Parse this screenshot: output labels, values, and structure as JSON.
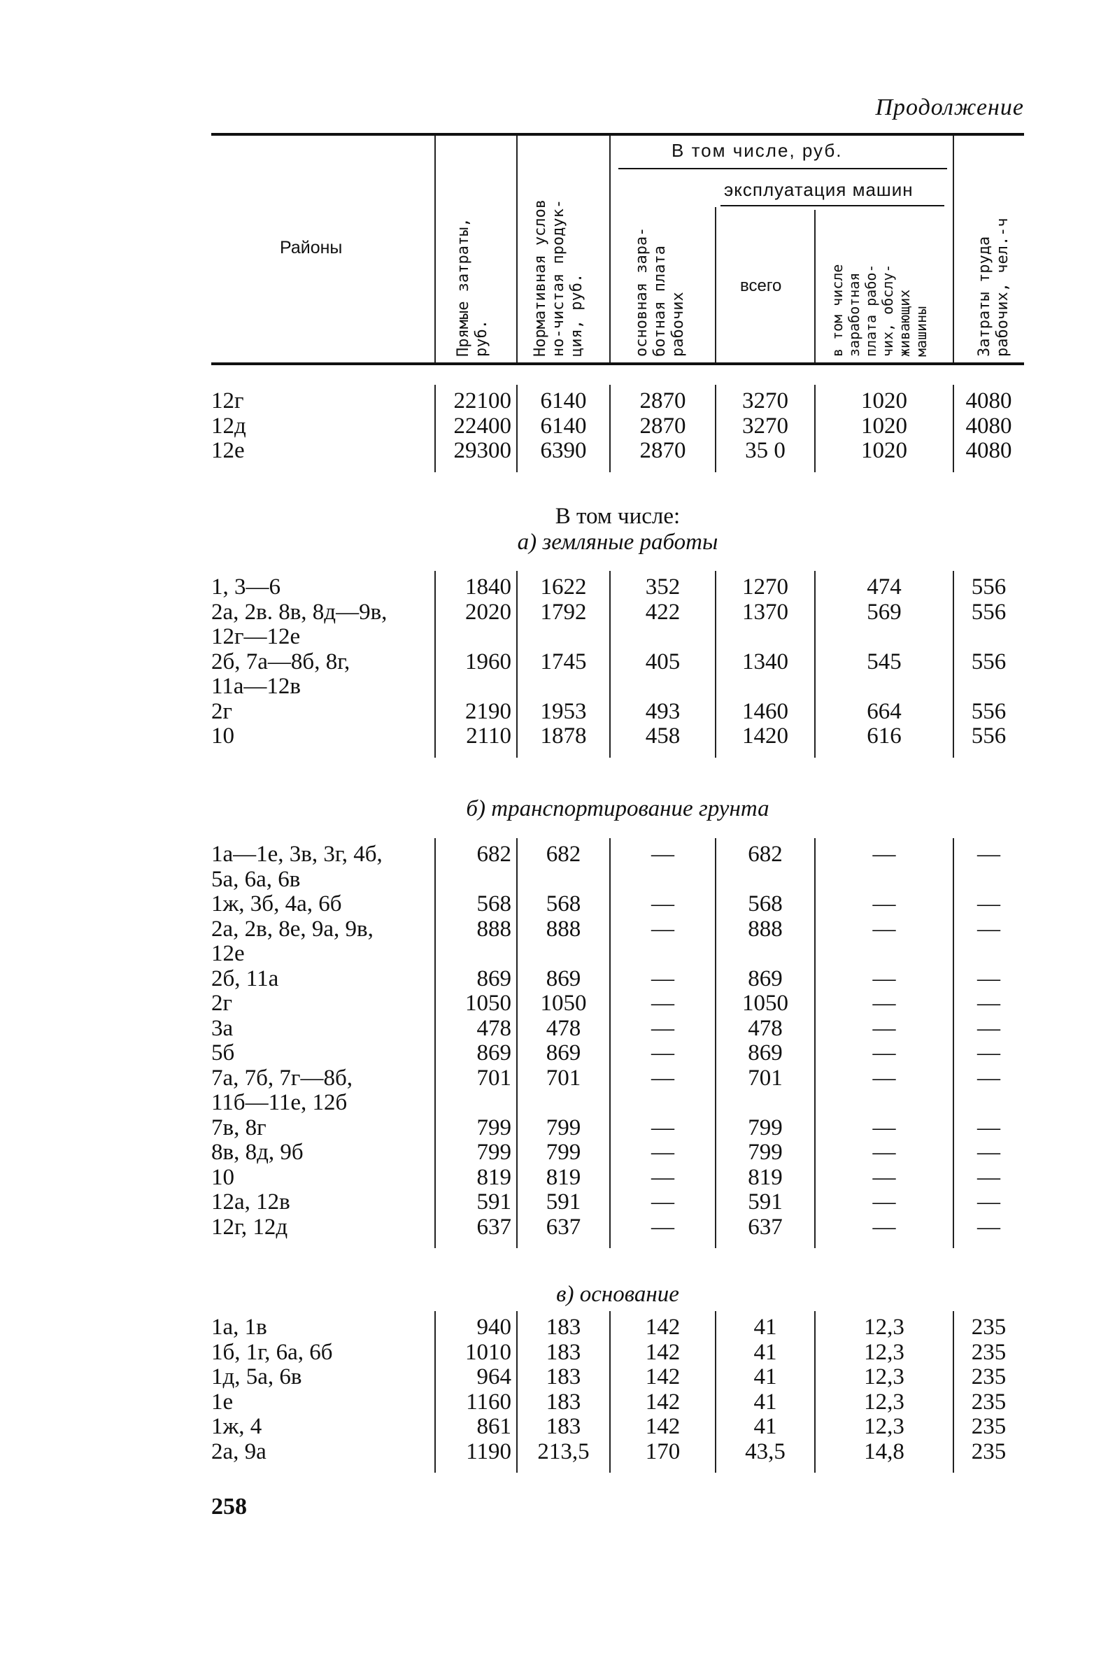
{
  "page": {
    "continuation": "Продолжение",
    "page_number": "258"
  },
  "header": {
    "regions": "Районы",
    "direct_costs": "Прямые затраты,\nруб.",
    "normative_net": "Нормативная услов\nно-чистая продук-\nция, руб.",
    "incl_group": "В том числе, руб.",
    "base_wage": "основная зара-\nботная плата\nрабочих",
    "machine_group": "эксплуатация машин",
    "machine_total": "всего",
    "machine_wage": "в том числе\nзаработная\nплата рабо-\nчих, обслу-\nживающих\nмашины",
    "labor": "Затраты труда\nрабочих, чел.-ч"
  },
  "sections": [
    {
      "title": "",
      "subtitle": "",
      "rows": [
        {
          "region": [
            "12г"
          ],
          "values": [
            "22100",
            "6140",
            "2870",
            "3270",
            "1020",
            "4080"
          ]
        },
        {
          "region": [
            "12д"
          ],
          "values": [
            "22400",
            "6140",
            "2870",
            "3270",
            "1020",
            "4080"
          ]
        },
        {
          "region": [
            "12е"
          ],
          "values": [
            "29300",
            "6390",
            "2870",
            "35 0",
            "1020",
            "4080"
          ]
        }
      ]
    },
    {
      "title": "В том числе:",
      "subtitle": "а) земляные работы",
      "rows": [
        {
          "region": [
            "1, 3—6"
          ],
          "values": [
            "1840",
            "1622",
            "352",
            "1270",
            "474",
            "556"
          ]
        },
        {
          "region": [
            "2а, 2в. 8в, 8д—9в,",
            "12г—12е"
          ],
          "values": [
            "2020",
            "1792",
            "422",
            "1370",
            "569",
            "556"
          ]
        },
        {
          "region": [
            "2б, 7а—8б, 8г,",
            "11а—12в"
          ],
          "values": [
            "1960",
            "1745",
            "405",
            "1340",
            "545",
            "556"
          ]
        },
        {
          "region": [
            "2г"
          ],
          "values": [
            "2190",
            "1953",
            "493",
            "1460",
            "664",
            "556"
          ]
        },
        {
          "region": [
            "10"
          ],
          "values": [
            "2110",
            "1878",
            "458",
            "1420",
            "616",
            "556"
          ]
        }
      ]
    },
    {
      "title": "",
      "subtitle": "б) транспортирование грунта",
      "rows": [
        {
          "region": [
            "1а—1е, 3в, 3г, 4б,",
            "5а, 6а, 6в"
          ],
          "values": [
            "682",
            "682",
            "—",
            "682",
            "—",
            "—"
          ]
        },
        {
          "region": [
            "1ж, 3б, 4а, 6б"
          ],
          "values": [
            "568",
            "568",
            "—",
            "568",
            "—",
            "—"
          ]
        },
        {
          "region": [
            "2а, 2в, 8е, 9а, 9в,",
            "12е"
          ],
          "values": [
            "888",
            "888",
            "—",
            "888",
            "—",
            "—"
          ]
        },
        {
          "region": [
            "2б, 11а"
          ],
          "values": [
            "869",
            "869",
            "—",
            "869",
            "—",
            "—"
          ]
        },
        {
          "region": [
            "2г"
          ],
          "values": [
            "1050",
            "1050",
            "—",
            "1050",
            "—",
            "—"
          ]
        },
        {
          "region": [
            "3а"
          ],
          "values": [
            "478",
            "478",
            "—",
            "478",
            "—",
            "—"
          ]
        },
        {
          "region": [
            "5б"
          ],
          "values": [
            "869",
            "869",
            "—",
            "869",
            "—",
            "—"
          ]
        },
        {
          "region": [
            "7а, 7б, 7г—8б,",
            "11б—11е, 12б"
          ],
          "values": [
            "701",
            "701",
            "—",
            "701",
            "—",
            "—"
          ]
        },
        {
          "region": [
            "7в, 8г"
          ],
          "values": [
            "799",
            "799",
            "—",
            "799",
            "—",
            "—"
          ]
        },
        {
          "region": [
            "8в, 8д, 9б"
          ],
          "values": [
            "799",
            "799",
            "—",
            "799",
            "—",
            "—"
          ]
        },
        {
          "region": [
            "10"
          ],
          "values": [
            "819",
            "819",
            "—",
            "819",
            "—",
            "—"
          ]
        },
        {
          "region": [
            "12а, 12в"
          ],
          "values": [
            "591",
            "591",
            "—",
            "591",
            "—",
            "—"
          ]
        },
        {
          "region": [
            "12г, 12д"
          ],
          "values": [
            "637",
            "637",
            "—",
            "637",
            "—",
            "—"
          ]
        }
      ]
    },
    {
      "title": "",
      "subtitle": "в) основание",
      "rows": [
        {
          "region": [
            "1а, 1в"
          ],
          "values": [
            "940",
            "183",
            "142",
            "41",
            "12,3",
            "235"
          ]
        },
        {
          "region": [
            "1б, 1г, 6а, 6б"
          ],
          "values": [
            "1010",
            "183",
            "142",
            "41",
            "12,3",
            "235"
          ]
        },
        {
          "region": [
            "1д, 5а, 6в"
          ],
          "values": [
            "964",
            "183",
            "142",
            "41",
            "12,3",
            "235"
          ]
        },
        {
          "region": [
            "1е"
          ],
          "values": [
            "1160",
            "183",
            "142",
            "41",
            "12,3",
            "235"
          ]
        },
        {
          "region": [
            "1ж, 4"
          ],
          "values": [
            "861",
            "183",
            "142",
            "41",
            "12,3",
            "235"
          ]
        },
        {
          "region": [
            "2а, 9а"
          ],
          "values": [
            "1190",
            "213,5",
            "170",
            "43,5",
            "14,8",
            "235"
          ]
        }
      ]
    }
  ]
}
